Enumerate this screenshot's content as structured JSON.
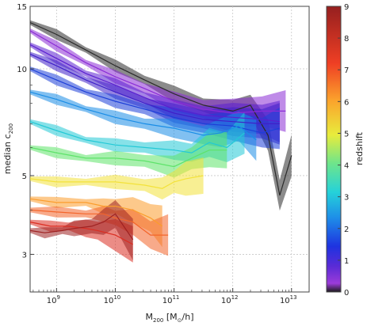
{
  "chart_data": {
    "type": "line",
    "title": "",
    "xlabel_main": "M",
    "xlabel_sub": "200",
    "xlabel_unit": "[M",
    "xlabel_unit_sub": "⊙",
    "xlabel_unit_end": "/h]",
    "ylabel_main": "median c",
    "ylabel_sub": "200",
    "x_scale": "log",
    "y_scale": "log",
    "xlim_exp": [
      8.55,
      13.3
    ],
    "ylim": [
      2.35,
      15
    ],
    "grid": true,
    "x_ticks": [
      {
        "exp": 9,
        "base": "10",
        "sup": "9"
      },
      {
        "exp": 10,
        "base": "10",
        "sup": "10"
      },
      {
        "exp": 11,
        "base": "10",
        "sup": "11"
      },
      {
        "exp": 12,
        "base": "10",
        "sup": "12"
      },
      {
        "exp": 13,
        "base": "10",
        "sup": "13"
      }
    ],
    "y_ticks": [
      {
        "value": 3,
        "label": "3"
      },
      {
        "value": 5,
        "label": "5"
      },
      {
        "value": 10,
        "label": "10"
      },
      {
        "value": 15,
        "label": "15"
      }
    ],
    "colorbar": {
      "label": "redshift",
      "min": 0,
      "max": 9,
      "ticks": [
        "0",
        "1",
        "2",
        "3",
        "4",
        "5",
        "6",
        "7",
        "8",
        "9"
      ]
    },
    "series": [
      {
        "z": 0,
        "color": "#2b2b2b",
        "x": [
          8.55,
          9.0,
          9.5,
          10.0,
          10.5,
          11.0,
          11.5,
          12.0,
          12.3,
          12.6,
          12.8,
          13.0
        ],
        "y": [
          13.5,
          12.5,
          11.3,
          10.2,
          9.3,
          8.5,
          7.9,
          7.6,
          7.9,
          6.5,
          4.4,
          5.7
        ]
      },
      {
        "z": 0.25,
        "color": "#8a2bd6",
        "x": [
          8.55,
          9.0,
          9.5,
          10.0,
          10.5,
          11.0,
          11.5,
          12.0,
          12.5,
          12.9
        ],
        "y": [
          12.8,
          11.6,
          10.4,
          9.5,
          8.8,
          8.1,
          7.7,
          7.5,
          7.6,
          7.6
        ]
      },
      {
        "z": 0.5,
        "color": "#5a1fd0",
        "x": [
          8.55,
          9.0,
          9.5,
          10.0,
          10.5,
          11.0,
          11.5,
          12.0,
          12.5,
          12.8
        ],
        "y": [
          11.7,
          10.7,
          9.7,
          9.0,
          8.3,
          7.7,
          7.4,
          7.3,
          7.2,
          7.1
        ]
      },
      {
        "z": 0.75,
        "color": "#3f20c9",
        "x": [
          8.55,
          9.0,
          9.5,
          10.0,
          10.5,
          11.0,
          11.5,
          12.0,
          12.5,
          12.8
        ],
        "y": [
          11.0,
          10.2,
          9.3,
          8.6,
          8.0,
          7.5,
          7.2,
          7.1,
          7.0,
          7.0
        ]
      },
      {
        "z": 1,
        "color": "#1d3fd8",
        "x": [
          8.55,
          9.0,
          9.5,
          10.0,
          10.5,
          11.0,
          11.5,
          12.0,
          12.5,
          12.8
        ],
        "y": [
          10.0,
          9.3,
          8.6,
          8.1,
          7.7,
          7.3,
          7.0,
          6.9,
          6.6,
          6.8
        ]
      },
      {
        "z": 1.5,
        "color": "#1a8de6",
        "x": [
          8.55,
          9.0,
          9.5,
          10.0,
          10.5,
          11.0,
          11.5,
          11.8,
          12.1,
          12.4
        ],
        "y": [
          8.6,
          8.2,
          7.7,
          7.3,
          7.0,
          6.8,
          6.5,
          6.6,
          6.9,
          6.3
        ]
      },
      {
        "z": 2,
        "color": "#22c9d6",
        "x": [
          8.55,
          9.0,
          9.5,
          10.0,
          10.5,
          11.0,
          11.3,
          11.6,
          11.9,
          12.2
        ],
        "y": [
          7.1,
          6.7,
          6.3,
          6.1,
          6.0,
          5.9,
          5.8,
          6.2,
          6.0,
          6.6
        ]
      },
      {
        "z": 2.5,
        "color": "#5ee36a",
        "x": [
          8.55,
          9.0,
          9.5,
          10.0,
          10.5,
          11.0,
          11.3,
          11.6,
          11.9
        ],
        "y": [
          6.0,
          5.8,
          5.6,
          5.6,
          5.5,
          5.3,
          5.6,
          5.9,
          5.9
        ]
      },
      {
        "z": 3.5,
        "color": "#f3e23a",
        "x": [
          8.55,
          9.0,
          9.5,
          10.0,
          10.5,
          10.8,
          11.0,
          11.2,
          11.5
        ],
        "y": [
          4.9,
          4.8,
          4.8,
          4.8,
          4.7,
          4.6,
          4.8,
          4.9,
          5.0
        ]
      },
      {
        "z": 4.5,
        "color": "#fb9d2c",
        "x": [
          8.55,
          9.0,
          9.5,
          9.8,
          10.0,
          10.3,
          10.6,
          10.8
        ],
        "y": [
          4.3,
          4.2,
          4.2,
          4.1,
          4.1,
          4.0,
          3.8,
          3.6
        ]
      },
      {
        "z": 5.5,
        "color": "#f3652a",
        "x": [
          8.55,
          9.0,
          9.5,
          9.8,
          10.0,
          10.3,
          10.6,
          10.9
        ],
        "y": [
          4.0,
          3.95,
          3.9,
          3.9,
          3.8,
          3.7,
          3.4,
          3.4
        ]
      },
      {
        "z": 7,
        "color": "#db2d22",
        "x": [
          8.55,
          8.9,
          9.2,
          9.5,
          9.7,
          10.0,
          10.3
        ],
        "y": [
          3.7,
          3.6,
          3.6,
          3.55,
          3.5,
          3.4,
          3.2
        ]
      },
      {
        "z": 8.5,
        "color": "#9e2222",
        "x": [
          8.55,
          8.8,
          9.1,
          9.3,
          9.6,
          9.8,
          10.0,
          10.3
        ],
        "y": [
          3.5,
          3.45,
          3.5,
          3.55,
          3.6,
          3.7,
          3.9,
          3.3
        ]
      }
    ]
  }
}
